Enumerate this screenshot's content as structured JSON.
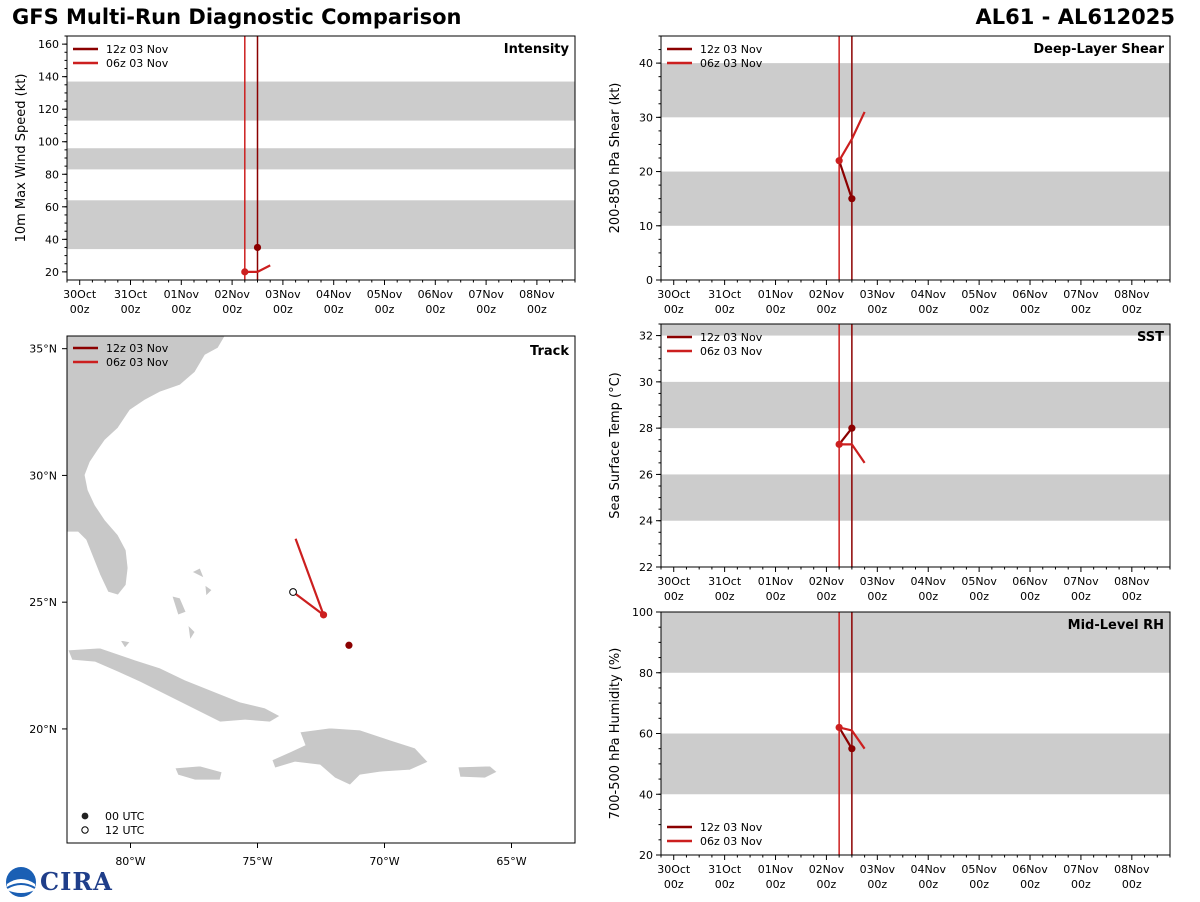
{
  "header": {
    "title_left": "GFS Multi-Run Diagnostic Comparison",
    "title_right": "AL61 - AL612025"
  },
  "legend": {
    "runs": [
      {
        "label": "12z 03 Nov",
        "color": "#8b0000"
      },
      {
        "label": "06z 03 Nov",
        "color": "#cc1f1f"
      }
    ],
    "track_markers": [
      "00 UTC",
      "12 UTC"
    ]
  },
  "time_axis": {
    "ticks": [
      "30Oct",
      "31Oct",
      "01Nov",
      "02Nov",
      "03Nov",
      "04Nov",
      "05Nov",
      "06Nov",
      "07Nov",
      "08Nov"
    ],
    "tick_sub": "00z",
    "run_lines_day": [
      3.25,
      3.5
    ]
  },
  "colors": {
    "band": "#cccccc",
    "run_12z": "#8b0000",
    "run_06z": "#cc1f1f",
    "land": "#c8c8c8"
  },
  "chart_data": [
    {
      "id": "intensity",
      "type": "line",
      "title": "Intensity",
      "ylabel": "10m Max Wind Speed (kt)",
      "ylim": [
        15,
        165
      ],
      "yticks": [
        20,
        40,
        60,
        80,
        100,
        120,
        140,
        160
      ],
      "bands": [
        [
          34,
          64
        ],
        [
          83,
          96
        ],
        [
          113,
          137
        ]
      ],
      "legend_position": "top-left",
      "series": [
        {
          "name": "12z 03 Nov",
          "x": [
            3.5
          ],
          "y": [
            35
          ],
          "points": [
            0
          ]
        },
        {
          "name": "06z 03 Nov",
          "x": [
            3.25,
            3.5,
            3.75
          ],
          "y": [
            20,
            20,
            24
          ],
          "points": [
            0
          ]
        }
      ]
    },
    {
      "id": "shear",
      "type": "line",
      "title": "Deep-Layer Shear",
      "ylabel": "200-850 hPa Shear (kt)",
      "ylim": [
        0,
        45
      ],
      "yticks": [
        0,
        10,
        20,
        30,
        40
      ],
      "bands": [
        [
          10,
          20
        ],
        [
          30,
          40
        ]
      ],
      "legend_position": "top-left",
      "series": [
        {
          "name": "12z 03 Nov",
          "x": [
            3.25,
            3.5
          ],
          "y": [
            22,
            15
          ],
          "points": [
            1
          ]
        },
        {
          "name": "06z 03 Nov",
          "x": [
            3.25,
            3.5,
            3.75
          ],
          "y": [
            22,
            26,
            31
          ],
          "points": [
            0
          ]
        }
      ]
    },
    {
      "id": "sst",
      "type": "line",
      "title": "SST",
      "ylabel": "Sea Surface Temp (°C)",
      "ylim": [
        22,
        32.5
      ],
      "yticks": [
        22,
        24,
        26,
        28,
        30,
        32
      ],
      "bands": [
        [
          24,
          26
        ],
        [
          28,
          30
        ],
        [
          32,
          34
        ]
      ],
      "legend_position": "top-left",
      "series": [
        {
          "name": "12z 03 Nov",
          "x": [
            3.25,
            3.5
          ],
          "y": [
            27.3,
            28.0
          ],
          "points": [
            1
          ]
        },
        {
          "name": "06z 03 Nov",
          "x": [
            3.25,
            3.5,
            3.75
          ],
          "y": [
            27.3,
            27.3,
            26.5
          ],
          "points": [
            0
          ]
        }
      ]
    },
    {
      "id": "rh",
      "type": "line",
      "title": "Mid-Level RH",
      "ylabel": "700-500 hPa Humidity (%)",
      "ylim": [
        20,
        100
      ],
      "yticks": [
        20,
        40,
        60,
        80,
        100
      ],
      "bands": [
        [
          40,
          60
        ],
        [
          80,
          100
        ]
      ],
      "legend_position": "bottom-left",
      "series": [
        {
          "name": "12z 03 Nov",
          "x": [
            3.25,
            3.5
          ],
          "y": [
            62,
            55
          ],
          "points": [
            1
          ]
        },
        {
          "name": "06z 03 Nov",
          "x": [
            3.25,
            3.5,
            3.75
          ],
          "y": [
            62,
            61,
            55
          ],
          "points": [
            0
          ]
        }
      ]
    },
    {
      "id": "track",
      "type": "scatter",
      "title": "Track",
      "lon_range": [
        -82.5,
        -62.5
      ],
      "lat_range": [
        15.5,
        35.5
      ],
      "xticks": [
        "80°W",
        "75°W",
        "70°W",
        "65°W"
      ],
      "xtick_values": [
        -80,
        -75,
        -70,
        -65
      ],
      "yticks": [
        "20°N",
        "25°N",
        "30°N",
        "35°N"
      ],
      "ytick_values": [
        20,
        25,
        30,
        35
      ],
      "legend_position": "top-left",
      "series": [
        {
          "name": "12z 03 Nov",
          "lon": [
            -71.4
          ],
          "lat": [
            23.3
          ],
          "markers": [
            "00 UTC"
          ]
        },
        {
          "name": "06z 03 Nov",
          "lon": [
            -73.6,
            -72.4,
            -73.5
          ],
          "lat": [
            25.4,
            24.5,
            27.5
          ],
          "markers": [
            "12 UTC",
            "00 UTC",
            ""
          ]
        }
      ]
    }
  ]
}
